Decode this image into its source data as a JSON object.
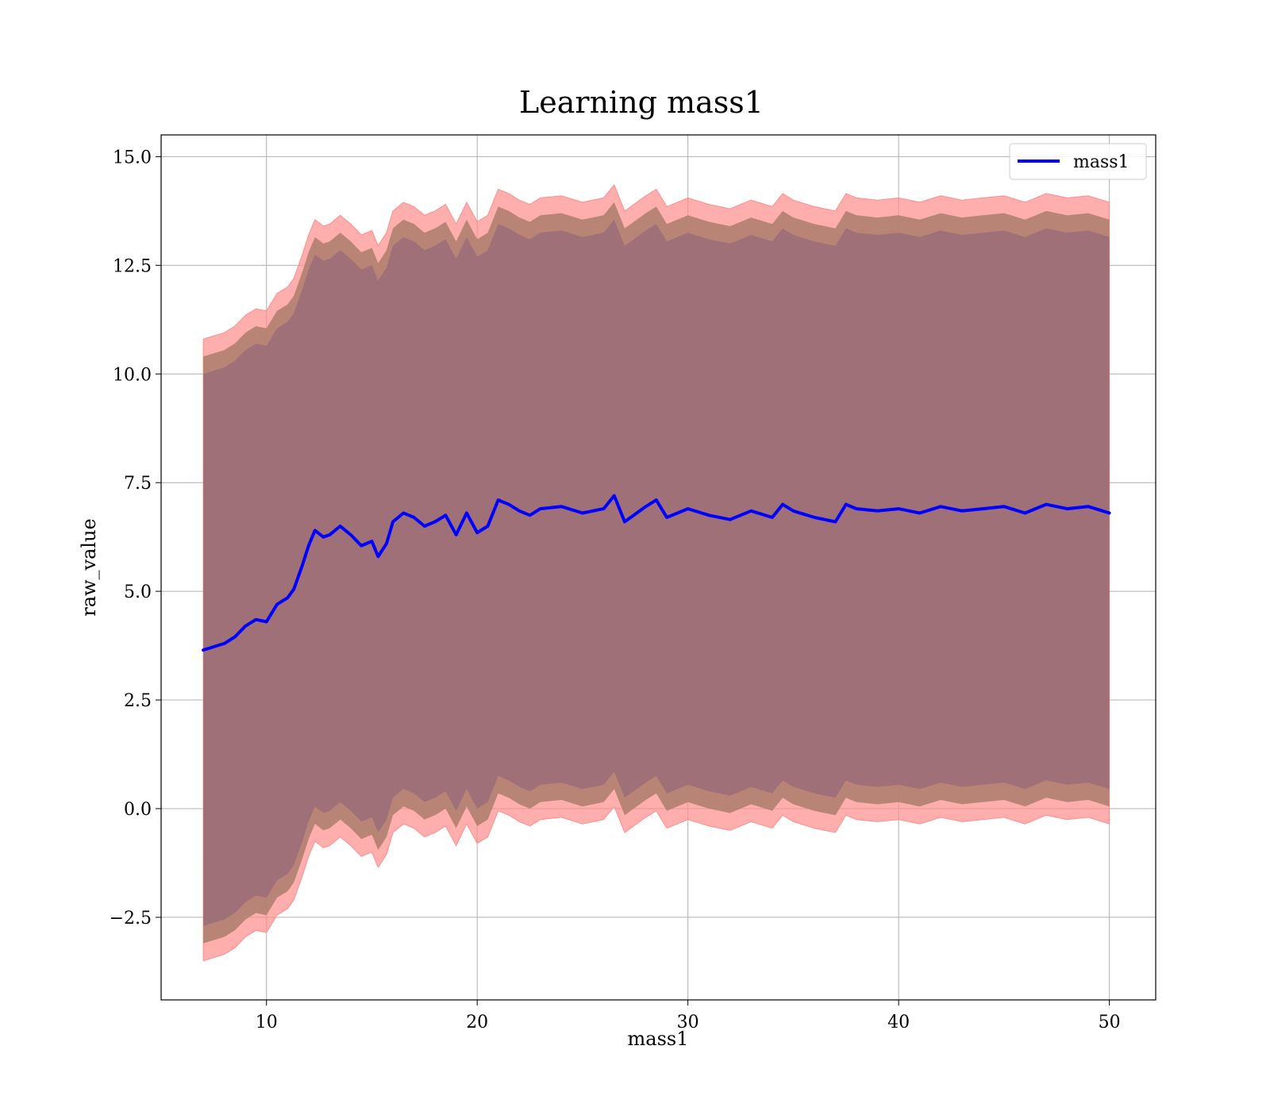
{
  "chart_data": {
    "type": "line",
    "title": "Learning mass1",
    "xlabel": "mass1",
    "ylabel": "raw_value",
    "xlim": [
      5,
      52.2
    ],
    "ylim": [
      -4.4,
      15.5
    ],
    "xticks": [
      10,
      20,
      30,
      40,
      50
    ],
    "xtick_labels": [
      "10",
      "20",
      "30",
      "40",
      "50"
    ],
    "yticks": [
      -2.5,
      0.0,
      2.5,
      5.0,
      7.5,
      10.0,
      12.5,
      15.0
    ],
    "ytick_labels": [
      "−2.5",
      "0.0",
      "2.5",
      "5.0",
      "7.5",
      "10.0",
      "12.5",
      "15.0"
    ],
    "grid": true,
    "legend_position": "top-right",
    "colors": {
      "line": "#0000ff",
      "outer_band": "#ff8c8c",
      "inner_band": "#b07f6f",
      "core_band": "#a07078"
    },
    "series": [
      {
        "name": "mass1",
        "x": [
          7.0,
          8.0,
          8.5,
          9.0,
          9.5,
          10.0,
          10.5,
          11.0,
          11.3,
          11.7,
          12.0,
          12.3,
          12.7,
          13.0,
          13.5,
          14.0,
          14.5,
          15.0,
          15.3,
          15.7,
          16.0,
          16.5,
          17.0,
          17.5,
          18.0,
          18.5,
          19.0,
          19.5,
          20.0,
          20.5,
          21.0,
          21.5,
          22.0,
          22.5,
          23.0,
          24.0,
          25.0,
          26.0,
          26.5,
          27.0,
          28.0,
          28.5,
          29.0,
          30.0,
          31.0,
          32.0,
          33.0,
          34.0,
          34.5,
          35.0,
          36.0,
          37.0,
          37.5,
          38.0,
          39.0,
          40.0,
          41.0,
          42.0,
          43.0,
          44.0,
          45.0,
          46.0,
          47.0,
          48.0,
          49.0,
          50.0
        ],
        "values": [
          3.65,
          3.8,
          3.95,
          4.2,
          4.35,
          4.3,
          4.7,
          4.85,
          5.05,
          5.6,
          6.05,
          6.4,
          6.25,
          6.3,
          6.5,
          6.3,
          6.05,
          6.15,
          5.8,
          6.1,
          6.6,
          6.8,
          6.7,
          6.5,
          6.6,
          6.75,
          6.3,
          6.8,
          6.35,
          6.5,
          7.1,
          7.0,
          6.85,
          6.75,
          6.9,
          6.95,
          6.8,
          6.9,
          7.2,
          6.6,
          6.95,
          7.1,
          6.7,
          6.9,
          6.75,
          6.65,
          6.85,
          6.7,
          7.0,
          6.85,
          6.7,
          6.6,
          7.0,
          6.9,
          6.85,
          6.9,
          6.8,
          6.95,
          6.85,
          6.9,
          6.95,
          6.8,
          7.0,
          6.9,
          6.95,
          6.8
        ]
      }
    ],
    "bands": {
      "x": [
        7.0,
        8.0,
        8.5,
        9.0,
        9.5,
        10.0,
        10.5,
        11.0,
        11.3,
        11.7,
        12.0,
        12.3,
        12.7,
        13.0,
        13.5,
        14.0,
        14.5,
        15.0,
        15.3,
        15.7,
        16.0,
        16.5,
        17.0,
        17.5,
        18.0,
        18.5,
        19.0,
        19.5,
        20.0,
        20.5,
        21.0,
        21.5,
        22.0,
        22.5,
        23.0,
        24.0,
        25.0,
        26.0,
        26.5,
        27.0,
        28.0,
        28.5,
        29.0,
        30.0,
        31.0,
        32.0,
        33.0,
        34.0,
        34.5,
        35.0,
        36.0,
        37.0,
        37.5,
        38.0,
        39.0,
        40.0,
        41.0,
        42.0,
        43.0,
        44.0,
        45.0,
        46.0,
        47.0,
        48.0,
        49.0,
        50.0
      ],
      "core_offset": 6.35,
      "inner_offset": 6.75,
      "outer_offset": 7.15
    }
  }
}
